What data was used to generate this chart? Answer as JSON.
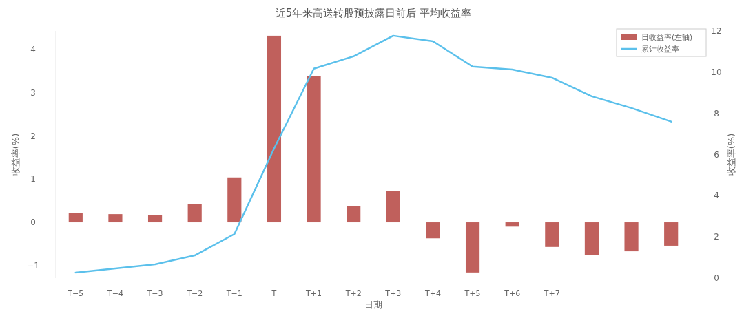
{
  "chart_data": {
    "type": "bar",
    "title": "近5年来高送转股预披露日前后  平均收益率",
    "xlabel": "日期",
    "ylabel": "收益率(%)",
    "y2label": "收益率(%)",
    "categories": [
      "T−5",
      "T−4",
      "T−3",
      "T−2",
      "T−1",
      "T",
      "T+1",
      "T+2",
      "T+3",
      "T+4",
      "T+5",
      "T+6",
      "T+7",
      null,
      null,
      null
    ],
    "series": [
      {
        "name": "日收益率(左轴)",
        "color": "#c0605c",
        "values": [
          0.22,
          0.19,
          0.17,
          0.43,
          1.04,
          4.32,
          3.38,
          0.38,
          0.72,
          -0.37,
          -1.16,
          -0.1,
          -0.57,
          -0.75,
          -0.67,
          -0.54
        ]
      },
      {
        "name": "累计收益率",
        "type": "line",
        "axis": "y2",
        "color": "#5bc0eb",
        "values": [
          0.27,
          0.47,
          0.67,
          1.1,
          2.14,
          6.3,
          10.17,
          10.77,
          11.77,
          11.5,
          10.27,
          10.13,
          9.73,
          8.83,
          8.26,
          7.6
        ]
      }
    ],
    "ylim": [
      -1.29,
      4.43
    ],
    "yticks": [
      {
        "value": -1,
        "label": "−1"
      },
      0,
      1,
      2,
      3,
      4
    ],
    "y2lim": [
      0,
      12
    ],
    "y2ticks": [
      0,
      2,
      4,
      6,
      8,
      10,
      12
    ],
    "grid": false,
    "legend": "top right"
  }
}
